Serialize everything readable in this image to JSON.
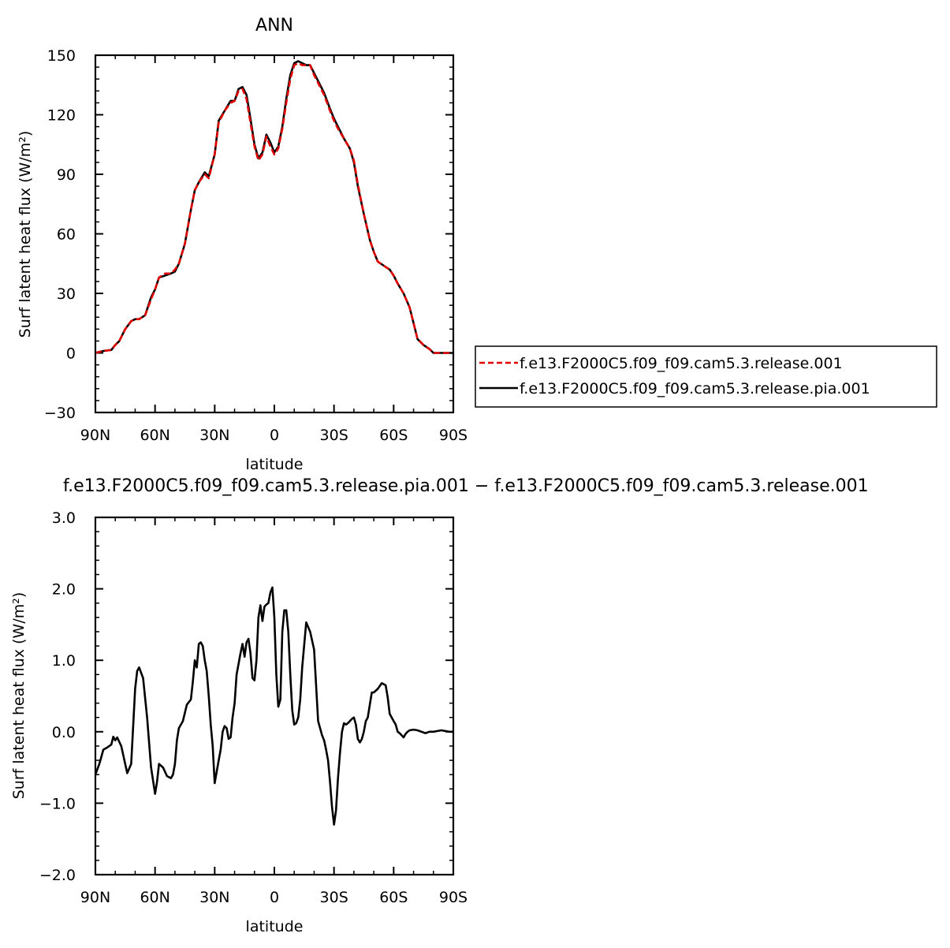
{
  "colors": {
    "control": "#e00000",
    "test": "#000000",
    "diff": "#000000",
    "axis": "#000000"
  },
  "chart_data": [
    {
      "type": "line",
      "title": "ANN",
      "xlabel": "latitude",
      "ylabel": "Surf latent heat flux (W/m²)",
      "ylim": [
        -30,
        150
      ],
      "xlim": [
        90,
        -90
      ],
      "yticks": [
        -30,
        0,
        30,
        60,
        90,
        120,
        150
      ],
      "ytick_labels": [
        "−30",
        "0",
        "30",
        "60",
        "90",
        "120",
        "150"
      ],
      "xticks": [
        90,
        60,
        30,
        0,
        -30,
        -60,
        -90
      ],
      "xtick_labels": [
        "90N",
        "60N",
        "30N",
        "0",
        "30S",
        "60S",
        "90S"
      ],
      "grid": false,
      "legend": "right",
      "x": [
        90,
        86,
        82,
        80,
        78,
        75,
        72,
        70,
        68,
        65,
        62,
        60,
        58,
        55,
        52,
        50,
        48,
        45,
        42,
        40,
        38,
        35,
        33,
        30,
        28,
        25,
        22,
        20,
        18,
        16,
        14,
        12,
        10,
        8,
        6,
        4,
        2,
        0,
        -2,
        -4,
        -6,
        -8,
        -10,
        -12,
        -14,
        -16,
        -18,
        -20,
        -22,
        -25,
        -28,
        -30,
        -32,
        -35,
        -38,
        -40,
        -42,
        -45,
        -48,
        -50,
        -52,
        -55,
        -58,
        -60,
        -62,
        -65,
        -68,
        -70,
        -72,
        -75,
        -78,
        -80,
        -82,
        -85,
        -88,
        -90
      ],
      "series": [
        {
          "name": "f.e13.F2000C5.f09_f09.cam5.3.release.001",
          "style": "dashed",
          "values": [
            0,
            1,
            1.5,
            4,
            6,
            12,
            16,
            17,
            17,
            19,
            27,
            32,
            38,
            40,
            40,
            42,
            45,
            55,
            72,
            82,
            86,
            90,
            88,
            100,
            116,
            122,
            126,
            127,
            132,
            133,
            128,
            116,
            104,
            97,
            100,
            109,
            104,
            100,
            103,
            113,
            126,
            138,
            145,
            146,
            145,
            145,
            145,
            140,
            136,
            130,
            122,
            117,
            113,
            108,
            103,
            97,
            85,
            70,
            57,
            51,
            46,
            44,
            42,
            39,
            35,
            30,
            23,
            15,
            7,
            4,
            2,
            0,
            0,
            0,
            0,
            0
          ]
        },
        {
          "name": "f.e13.F2000C5.f09_f09.cam5.3.release.pia.001",
          "style": "solid",
          "values": [
            0,
            1,
            1.5,
            4,
            6,
            12,
            16,
            17,
            17,
            19,
            28,
            32,
            38,
            39,
            40,
            41,
            45,
            55,
            72,
            82,
            86,
            91,
            89,
            100,
            117,
            122,
            127,
            127,
            133,
            134,
            130,
            118,
            105,
            98,
            101,
            110,
            106,
            101,
            104,
            114,
            128,
            140,
            146,
            147,
            146,
            145,
            145,
            141,
            137,
            131,
            123,
            118,
            114,
            108,
            103,
            96,
            84,
            70,
            57,
            51,
            46,
            44,
            42,
            39,
            35,
            30,
            23,
            15,
            7,
            4,
            2,
            0,
            0,
            0,
            0,
            0
          ]
        }
      ]
    },
    {
      "type": "line",
      "title": "f.e13.F2000C5.f09_f09.cam5.3.release.pia.001 − f.e13.F2000C5.f09_f09.cam5.3.release.001",
      "xlabel": "latitude",
      "ylabel": "Surf latent heat flux (W/m²)",
      "ylim": [
        -2.0,
        3.0
      ],
      "xlim": [
        90,
        -90
      ],
      "yticks": [
        -2.0,
        -1.0,
        0.0,
        1.0,
        2.0,
        3.0
      ],
      "ytick_labels": [
        "−2.0",
        "−1.0",
        "0.0",
        "1.0",
        "2.0",
        "3.0"
      ],
      "xticks": [
        90,
        60,
        30,
        0,
        -30,
        -60,
        -90
      ],
      "xtick_labels": [
        "90N",
        "60N",
        "30N",
        "0",
        "30S",
        "60S",
        "90S"
      ],
      "grid": false,
      "series": [
        {
          "style": "solid",
          "x": [
            90,
            88,
            86,
            84,
            82,
            81,
            80,
            79,
            77,
            75,
            74,
            72,
            70,
            69,
            68,
            66,
            64,
            62,
            60,
            59,
            58,
            56,
            54,
            52,
            51,
            50,
            49,
            48,
            46,
            44,
            42,
            41,
            40,
            39,
            38,
            37,
            36,
            35,
            34,
            33,
            32,
            31,
            30,
            28,
            27,
            26,
            25,
            24,
            23,
            22,
            21,
            20,
            19,
            17,
            16,
            15,
            14,
            13,
            12,
            11,
            10,
            9,
            8,
            7,
            6,
            5,
            4,
            3,
            2,
            1,
            0,
            -1,
            -2,
            -3,
            -4,
            -5,
            -6,
            -7,
            -8,
            -9,
            -10,
            -11,
            -12,
            -13,
            -14,
            -16,
            -18,
            -20,
            -22,
            -24,
            -25,
            -26,
            -27,
            -28,
            -29,
            -30,
            -31,
            -32,
            -33,
            -34,
            -35,
            -36,
            -37,
            -38,
            -39,
            -40,
            -41,
            -42,
            -43,
            -44,
            -45,
            -46,
            -47,
            -48,
            -49,
            -50,
            -52,
            -54,
            -56,
            -57,
            -58,
            -59,
            -60,
            -61,
            -62,
            -63,
            -64,
            -65,
            -66,
            -67,
            -68,
            -70,
            -72,
            -74,
            -76,
            -78,
            -80,
            -82,
            -84,
            -86,
            -88,
            -90
          ],
          "values": [
            -0.6,
            -0.45,
            -0.25,
            -0.22,
            -0.18,
            -0.07,
            -0.12,
            -0.08,
            -0.2,
            -0.45,
            -0.58,
            -0.45,
            0.6,
            0.85,
            0.9,
            0.75,
            0.2,
            -0.5,
            -0.87,
            -0.7,
            -0.45,
            -0.5,
            -0.62,
            -0.65,
            -0.6,
            -0.45,
            -0.12,
            0.05,
            0.15,
            0.38,
            0.45,
            0.7,
            1.0,
            0.9,
            1.23,
            1.25,
            1.2,
            1.0,
            0.85,
            0.5,
            0.1,
            -0.2,
            -0.72,
            -0.4,
            -0.25,
            0.0,
            0.08,
            0.05,
            -0.1,
            -0.08,
            0.2,
            0.4,
            0.8,
            1.1,
            1.23,
            1.05,
            1.25,
            1.3,
            1.1,
            0.75,
            0.72,
            1.0,
            1.6,
            1.77,
            1.55,
            1.75,
            1.78,
            1.8,
            1.95,
            2.02,
            1.6,
            0.8,
            0.35,
            0.45,
            1.4,
            1.7,
            1.7,
            1.4,
            0.8,
            0.3,
            0.1,
            0.12,
            0.2,
            0.45,
            0.9,
            1.53,
            1.4,
            1.15,
            0.15,
            -0.05,
            -0.12,
            -0.25,
            -0.4,
            -0.7,
            -1.05,
            -1.3,
            -1.1,
            -0.65,
            -0.3,
            0.0,
            0.12,
            0.1,
            0.12,
            0.15,
            0.18,
            0.2,
            0.1,
            -0.1,
            -0.15,
            -0.1,
            0.0,
            0.15,
            0.2,
            0.38,
            0.55,
            0.55,
            0.6,
            0.68,
            0.65,
            0.48,
            0.25,
            0.2,
            0.15,
            0.1,
            0.0,
            -0.02,
            -0.05,
            -0.08,
            -0.03,
            0.0,
            0.02,
            0.03,
            0.02,
            0.0,
            -0.02,
            0.0,
            0.0,
            0.01,
            0.02,
            0.01,
            0.0,
            0.0
          ]
        }
      ]
    }
  ]
}
